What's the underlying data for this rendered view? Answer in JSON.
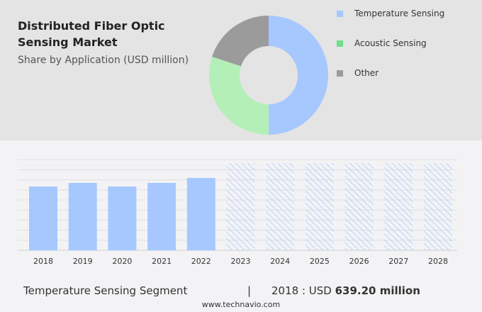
{
  "title": "Distributed Fiber Optic Sensing Market",
  "subtitle": "Share by Application (USD million)",
  "colors": {
    "temperature": "#a6c8ff",
    "acoustic": "#b5efb8",
    "other": "#9b9b9b",
    "legend_acoustic": "#6fe08f"
  },
  "chart_data": [
    {
      "type": "pie",
      "donut": true,
      "series": [
        {
          "name": "Temperature Sensing",
          "value": 50
        },
        {
          "name": "Acoustic Sensing",
          "value": 30
        },
        {
          "name": "Other",
          "value": 20
        }
      ],
      "legend": "right"
    },
    {
      "type": "bar",
      "categories": [
        "2018",
        "2019",
        "2020",
        "2021",
        "2022",
        "2023",
        "2024",
        "2025",
        "2026",
        "2027",
        "2028"
      ],
      "values": [
        639.2,
        675,
        639,
        675,
        725,
        null,
        null,
        null,
        null,
        null,
        null
      ],
      "forecast": [
        "2023",
        "2024",
        "2025",
        "2026",
        "2027",
        "2028"
      ],
      "grid": true,
      "ylim": [
        0,
        900
      ]
    }
  ],
  "footer": {
    "segment": "Temperature Sensing Segment",
    "sep": "|",
    "year_label": "2018 : USD",
    "value": "639.20 million"
  },
  "site": "www.technavio.com"
}
